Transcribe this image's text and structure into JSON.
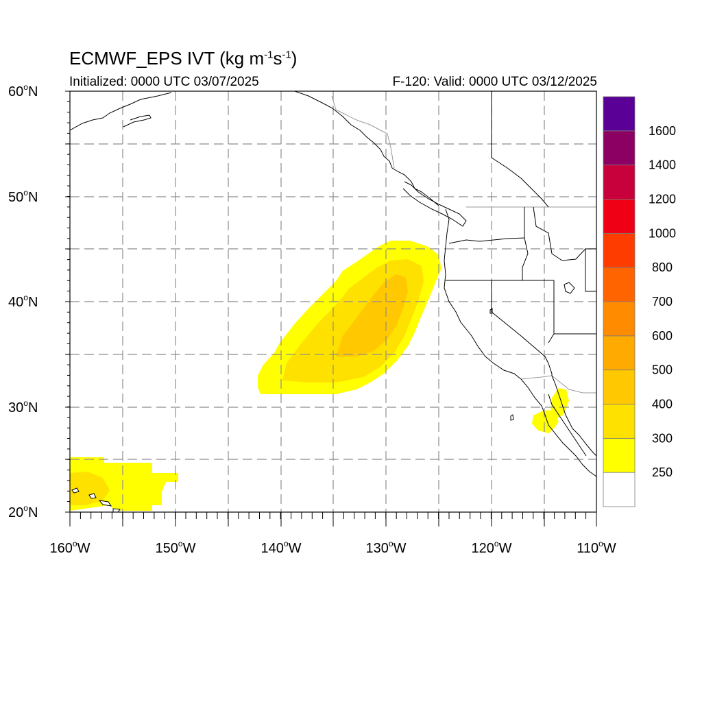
{
  "title": {
    "main": "ECMWF_EPS IVT (kg m",
    "exp1": "-1",
    "mid": "s",
    "exp2": "-1",
    "end": ")"
  },
  "subtitle_left": "Initialized: 0000 UTC 03/07/2025",
  "subtitle_right": "F-120: Valid: 0000 UTC 03/12/2025",
  "map": {
    "lon_range": [
      -160,
      -110
    ],
    "lat_range": [
      20,
      60
    ],
    "grid": true,
    "grid_style": "dashed gray",
    "x_ticks": [
      {
        "lon": -160,
        "label": "160",
        "suffix": "W"
      },
      {
        "lon": -150,
        "label": "150",
        "suffix": "W"
      },
      {
        "lon": -140,
        "label": "140",
        "suffix": "W"
      },
      {
        "lon": -130,
        "label": "130",
        "suffix": "W"
      },
      {
        "lon": -120,
        "label": "120",
        "suffix": "W"
      },
      {
        "lon": -110,
        "label": "110",
        "suffix": "W"
      }
    ],
    "y_ticks": [
      {
        "lat": 60,
        "label": "60",
        "suffix": "N"
      },
      {
        "lat": 50,
        "label": "50",
        "suffix": "N"
      },
      {
        "lat": 40,
        "label": "40",
        "suffix": "N"
      },
      {
        "lat": 30,
        "label": "30",
        "suffix": "N"
      },
      {
        "lat": 20,
        "label": "20",
        "suffix": "N"
      }
    ]
  },
  "colorbar": {
    "levels": [
      250,
      300,
      400,
      500,
      600,
      700,
      800,
      1000,
      1200,
      1400,
      1600
    ],
    "labels": [
      "250",
      "300",
      "400",
      "500",
      "600",
      "700",
      "800",
      "1000",
      "1200",
      "1400",
      "1600"
    ],
    "colors": [
      "#ffffff",
      "#ffff00",
      "#ffe100",
      "#ffc800",
      "#ffaa00",
      "#ff8c00",
      "#ff6400",
      "#ff3c00",
      "#f00014",
      "#c8003c",
      "#8c0064",
      "#5a0096"
    ]
  },
  "ivt_features": [
    {
      "name": "atmospheric river",
      "outer_color": "#ffff00",
      "mid_color": "#ffe100",
      "core_color": "#ffc800"
    },
    {
      "name": "subtropical moisture near Hawaii",
      "outer_color": "#ffff00",
      "mid_color": "#ffe100"
    },
    {
      "name": "Baja California",
      "outer_color": "#ffff00"
    }
  ]
}
